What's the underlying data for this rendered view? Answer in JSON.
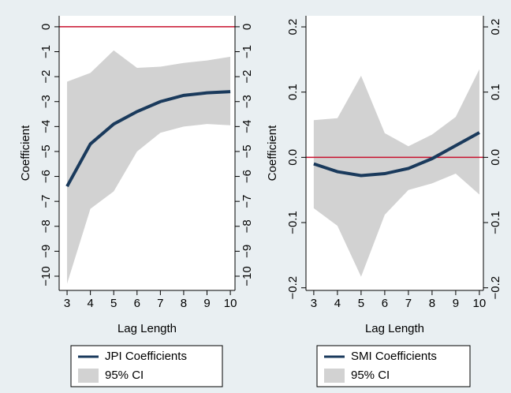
{
  "chart_data": [
    {
      "type": "line",
      "x_label": "Lag Length",
      "y_label": "Coefficient",
      "x": [
        3,
        4,
        5,
        6,
        7,
        8,
        9,
        10
      ],
      "xlim": [
        2.66,
        10.2
      ],
      "xticks": [
        3,
        4,
        5,
        6,
        7,
        8,
        9,
        10
      ],
      "ylim": [
        -10.57,
        0.44
      ],
      "yticks": [
        0,
        {
          "value": -1,
          "label": "−1"
        },
        {
          "value": -2,
          "label": "−2"
        },
        {
          "value": -3,
          "label": "−3"
        },
        {
          "value": -4,
          "label": "−4"
        },
        {
          "value": -5,
          "label": "−5"
        },
        {
          "value": -6,
          "label": "−6"
        },
        {
          "value": -7,
          "label": "−7"
        },
        {
          "value": -8,
          "label": "−8"
        },
        {
          "value": -9,
          "label": "−9"
        },
        {
          "value": -10,
          "label": "−10"
        }
      ],
      "hline": {
        "value": 0,
        "color": "#c8102e"
      },
      "legend": "bottom",
      "series": [
        {
          "name": "JPI Coefficients",
          "color": "#1a3a5c",
          "values": [
            -6.4,
            -4.7,
            -3.9,
            -3.4,
            -3.0,
            -2.75,
            -2.65,
            -2.6
          ]
        },
        {
          "name": "95% CI",
          "type": "band",
          "color": "#d2d2d2",
          "upper": [
            -2.2,
            -1.85,
            -0.95,
            -1.65,
            -1.6,
            -1.45,
            -1.35,
            -1.2
          ],
          "lower": [
            -10.3,
            -7.3,
            -6.6,
            -5.0,
            -4.25,
            -4.0,
            -3.9,
            -3.95
          ]
        }
      ]
    },
    {
      "type": "line",
      "x_label": "Lag Length",
      "y_label": "Coefficient",
      "x": [
        3,
        4,
        5,
        6,
        7,
        8,
        9,
        10
      ],
      "xlim": [
        2.67,
        10.17
      ],
      "xticks": [
        3,
        4,
        5,
        6,
        7,
        8,
        9,
        10
      ],
      "ylim": [
        -0.204,
        0.217
      ],
      "yticks": [
        0.2,
        0.1,
        {
          "value": 0,
          "label": "0.0"
        },
        {
          "value": -0.1,
          "label": "−0.1"
        },
        {
          "value": -0.2,
          "label": "−0.2"
        }
      ],
      "hline": {
        "value": 0,
        "color": "#c8102e"
      },
      "legend": "bottom",
      "series": [
        {
          "name": "SMI Coefficients",
          "color": "#1a3a5c",
          "values": [
            -0.01,
            -0.022,
            -0.028,
            -0.025,
            -0.017,
            -0.002,
            0.018,
            0.038
          ]
        },
        {
          "name": "95% CI",
          "type": "band",
          "color": "#d2d2d2",
          "upper": [
            0.057,
            0.06,
            0.125,
            0.037,
            0.017,
            0.035,
            0.062,
            0.135
          ],
          "lower": [
            -0.078,
            -0.105,
            -0.183,
            -0.088,
            -0.05,
            -0.04,
            -0.025,
            -0.057
          ]
        }
      ]
    }
  ]
}
